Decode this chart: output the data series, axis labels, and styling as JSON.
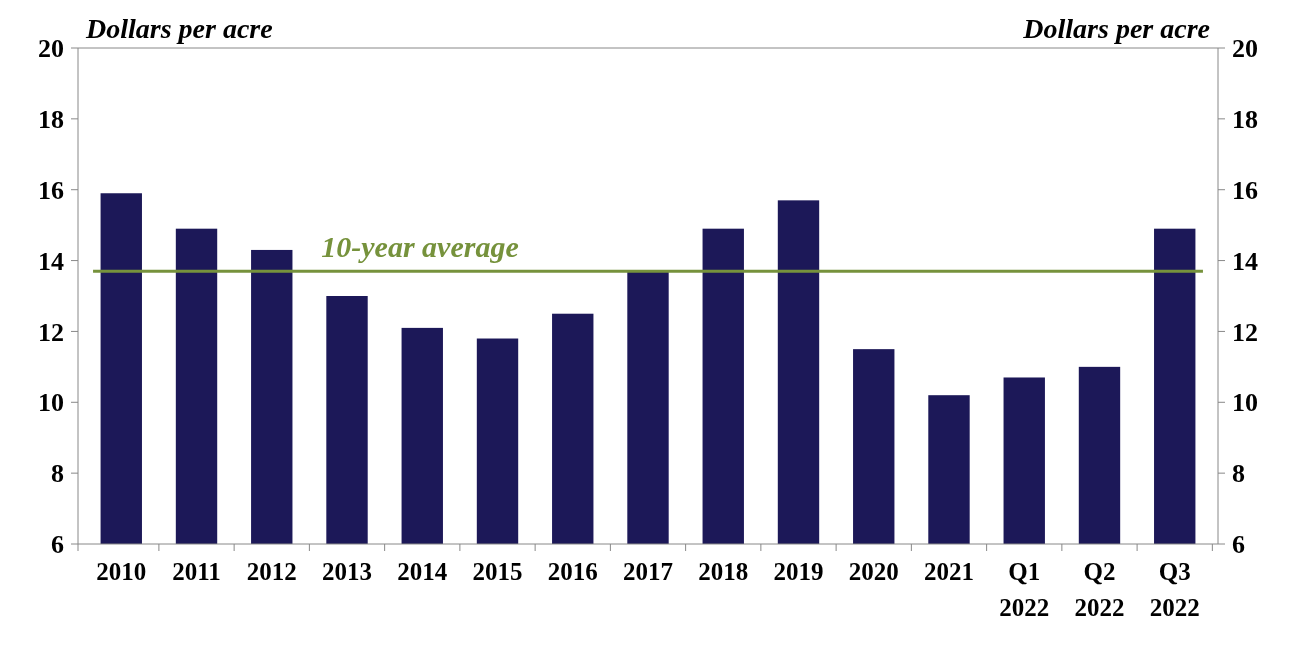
{
  "chart_data": {
    "type": "bar",
    "ylabel": "Dollars per acre",
    "y2label": "Dollars per acre",
    "categories": [
      "2010",
      "2011",
      "2012",
      "2013",
      "2014",
      "2015",
      "2016",
      "2017",
      "2018",
      "2019",
      "2020",
      "2021",
      "Q1 2022",
      "Q2 2022",
      "Q3 2022"
    ],
    "values": [
      15.9,
      14.9,
      14.3,
      13.0,
      12.1,
      11.8,
      12.5,
      13.7,
      14.9,
      15.7,
      11.5,
      10.2,
      10.7,
      11.0,
      14.9
    ],
    "color": "#1c1858",
    "ylim": [
      6,
      20
    ],
    "yticks": [
      6,
      8,
      10,
      12,
      14,
      16,
      18,
      20
    ],
    "y2lim": [
      6,
      20
    ],
    "y2ticks": [
      6,
      8,
      10,
      12,
      14,
      16,
      18,
      20
    ],
    "ref_lines": [
      {
        "axis": "y",
        "value": 13.7,
        "label": "10-year average",
        "color": "#76923c"
      }
    ]
  }
}
